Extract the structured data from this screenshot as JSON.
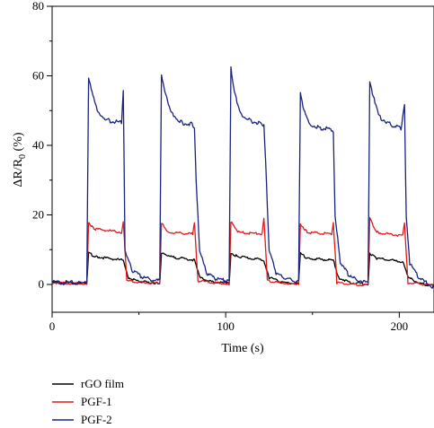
{
  "chart_data": {
    "type": "line",
    "xlabel": "Time (s)",
    "ylabel_main": "ΔR/R",
    "ylabel_sub": "0",
    "ylabel_suffix": " (%)",
    "xlim": [
      0,
      220
    ],
    "ylim": [
      -8,
      80
    ],
    "x_ticks": [
      0,
      100,
      200
    ],
    "y_ticks": [
      0,
      20,
      40,
      60,
      80
    ],
    "legend_position": "bottom-left, below plot",
    "pulses": [
      {
        "on": 20,
        "off": 41
      },
      {
        "on": 62,
        "off": 82
      },
      {
        "on": 102,
        "off": 122
      },
      {
        "on": 142,
        "off": 162
      },
      {
        "on": 182,
        "off": 203
      }
    ],
    "series": [
      {
        "name": "rGO film",
        "color": "#000000",
        "baseline": 0.3,
        "peak": 9,
        "plateau": 7,
        "pre_off_spike": 0,
        "points": [
          [
            0,
            0.5
          ],
          [
            18,
            0.3
          ],
          [
            20,
            0.3
          ],
          [
            21,
            9
          ],
          [
            25,
            8
          ],
          [
            40,
            7
          ],
          [
            41,
            7
          ],
          [
            44,
            2
          ],
          [
            50,
            0.8
          ],
          [
            61,
            0.4
          ],
          [
            62,
            0.4
          ],
          [
            63,
            9
          ],
          [
            67,
            8
          ],
          [
            82,
            7
          ],
          [
            85,
            2
          ],
          [
            92,
            0.7
          ],
          [
            101,
            0.3
          ],
          [
            102,
            0.3
          ],
          [
            103,
            9
          ],
          [
            107,
            8
          ],
          [
            122,
            7
          ],
          [
            125,
            2
          ],
          [
            132,
            0.6
          ],
          [
            141,
            0.2
          ],
          [
            142,
            0.2
          ],
          [
            143,
            9
          ],
          [
            147,
            7.5
          ],
          [
            162,
            7
          ],
          [
            165,
            2
          ],
          [
            172,
            0.5
          ],
          [
            181,
            0.1
          ],
          [
            182,
            0.1
          ],
          [
            183,
            9
          ],
          [
            187,
            7.5
          ],
          [
            202,
            6.5
          ],
          [
            205,
            2
          ],
          [
            212,
            0.3
          ],
          [
            220,
            -0.4
          ]
        ]
      },
      {
        "name": "PGF-1",
        "color": "#e31a1c",
        "baseline": 0.2,
        "peak": 18,
        "plateau": 14.5,
        "pre_off_spike": 18,
        "points": [
          [
            0,
            0.5
          ],
          [
            19,
            0.2
          ],
          [
            20,
            0.2
          ],
          [
            21,
            18
          ],
          [
            24,
            16
          ],
          [
            40,
            15
          ],
          [
            41,
            18
          ],
          [
            43,
            1
          ],
          [
            60,
            0.2
          ],
          [
            62,
            0.2
          ],
          [
            63,
            17.5
          ],
          [
            67,
            15
          ],
          [
            81,
            14.5
          ],
          [
            82,
            18
          ],
          [
            84,
            1
          ],
          [
            101,
            0.1
          ],
          [
            102,
            0.1
          ],
          [
            103,
            18
          ],
          [
            107,
            15
          ],
          [
            121,
            14.5
          ],
          [
            122,
            19
          ],
          [
            124,
            1
          ],
          [
            141,
            0
          ],
          [
            142,
            0
          ],
          [
            143,
            17.5
          ],
          [
            147,
            15
          ],
          [
            161,
            14.5
          ],
          [
            162,
            18
          ],
          [
            164,
            0.5
          ],
          [
            181,
            -0.2
          ],
          [
            182,
            -0.2
          ],
          [
            183,
            19
          ],
          [
            187,
            15
          ],
          [
            202,
            14
          ],
          [
            203,
            18
          ],
          [
            205,
            0.5
          ],
          [
            220,
            -0.3
          ]
        ]
      },
      {
        "name": "PGF-2",
        "color": "#1a237e",
        "baseline": 0.4,
        "peak": 60,
        "plateau": 45,
        "pre_off_spike": 56,
        "points": [
          [
            0,
            0.6
          ],
          [
            19,
            0.4
          ],
          [
            20,
            0.4
          ],
          [
            21,
            59
          ],
          [
            23,
            55
          ],
          [
            27,
            49
          ],
          [
            33,
            47
          ],
          [
            40,
            46.5
          ],
          [
            41,
            56
          ],
          [
            42,
            10
          ],
          [
            46,
            4
          ],
          [
            52,
            2
          ],
          [
            61,
            1
          ],
          [
            62,
            1
          ],
          [
            63,
            60
          ],
          [
            65,
            55
          ],
          [
            69,
            49
          ],
          [
            75,
            46.5
          ],
          [
            81,
            46
          ],
          [
            82,
            45
          ],
          [
            83,
            30
          ],
          [
            85,
            10
          ],
          [
            89,
            3
          ],
          [
            95,
            1.5
          ],
          [
            101,
            1
          ],
          [
            102,
            1
          ],
          [
            103,
            62
          ],
          [
            105,
            55
          ],
          [
            109,
            49
          ],
          [
            115,
            47
          ],
          [
            121,
            46
          ],
          [
            122,
            46
          ],
          [
            123,
            36
          ],
          [
            125,
            10
          ],
          [
            129,
            3
          ],
          [
            135,
            1.5
          ],
          [
            141,
            0.8
          ],
          [
            142,
            0.8
          ],
          [
            143,
            55
          ],
          [
            145,
            50
          ],
          [
            149,
            46
          ],
          [
            155,
            45
          ],
          [
            161,
            44.5
          ],
          [
            162,
            44
          ],
          [
            163,
            20
          ],
          [
            166,
            6
          ],
          [
            172,
            2
          ],
          [
            181,
            0.5
          ],
          [
            182,
            0.5
          ],
          [
            183,
            58
          ],
          [
            185,
            54
          ],
          [
            189,
            48
          ],
          [
            195,
            46
          ],
          [
            201,
            45
          ],
          [
            203,
            52
          ],
          [
            204,
            20
          ],
          [
            206,
            6
          ],
          [
            212,
            1.5
          ],
          [
            220,
            -0.8
          ]
        ]
      }
    ]
  }
}
